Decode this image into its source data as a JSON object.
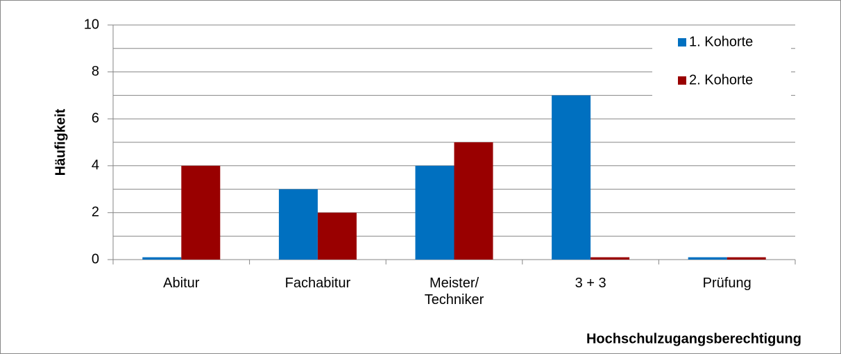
{
  "chart_data": {
    "type": "bar",
    "categories": [
      "Abitur",
      "Fachabitur",
      "Meister/\nTechniker",
      "3 + 3",
      "Prüfung"
    ],
    "series": [
      {
        "name": "1. Kohorte",
        "color": "#0070c0",
        "values": [
          0.1,
          3,
          4,
          7,
          0.1
        ]
      },
      {
        "name": "2. Kohorte",
        "color": "#990000",
        "values": [
          4,
          2,
          5,
          0.1,
          0.1
        ]
      }
    ],
    "x_label": "Hochschulzugangsberechtigung",
    "y_label": "Häufigkeit",
    "ylim": [
      0,
      10
    ],
    "yticks": [
      0,
      2,
      4,
      6,
      8,
      10
    ],
    "y_minor_ticks": [
      1,
      3,
      5,
      7,
      9
    ],
    "grid": true,
    "legend": "top-right"
  }
}
